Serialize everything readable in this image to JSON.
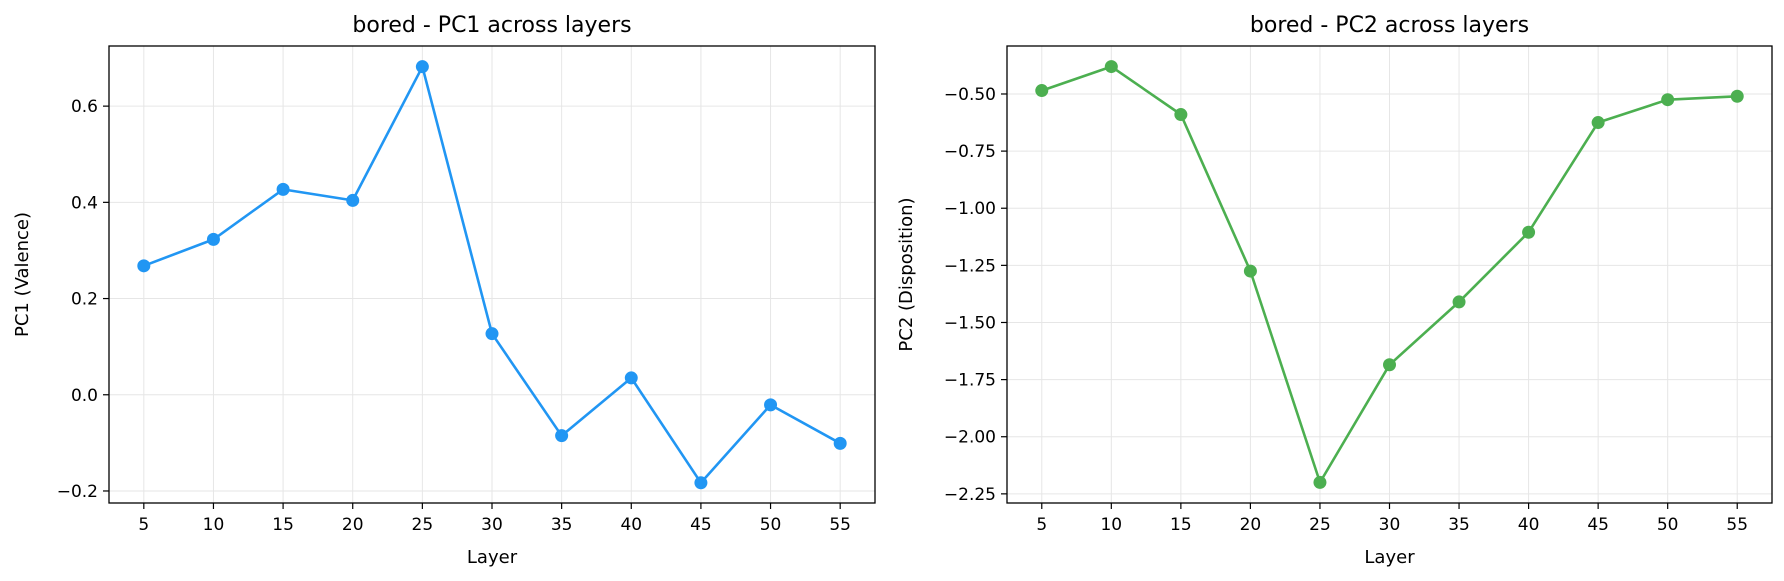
{
  "chart_data": [
    {
      "type": "line",
      "title": "bored - PC1 across layers",
      "xlabel": "Layer",
      "ylabel": "PC1 (Valence)",
      "x": [
        5,
        10,
        15,
        20,
        25,
        30,
        35,
        40,
        45,
        50,
        55
      ],
      "xticks": [
        "5",
        "10",
        "15",
        "20",
        "25",
        "30",
        "35",
        "40",
        "45",
        "50",
        "55"
      ],
      "xlim": [
        2.5,
        57.5
      ],
      "ylim": [
        -0.225,
        0.725
      ],
      "yticks": [
        {
          "value": -0.2,
          "label": "−0.2"
        },
        {
          "value": 0.0,
          "label": "0.0"
        },
        {
          "value": 0.2,
          "label": "0.2"
        },
        {
          "value": 0.4,
          "label": "0.4"
        },
        {
          "value": 0.6,
          "label": "0.6"
        }
      ],
      "grid": true,
      "series": [
        {
          "color": "#2196F3",
          "marker": "circle",
          "values": [
            0.268,
            0.323,
            0.427,
            0.404,
            0.682,
            0.127,
            -0.085,
            0.035,
            -0.183,
            -0.021,
            -0.101
          ]
        }
      ]
    },
    {
      "type": "line",
      "title": "bored - PC2 across layers",
      "xlabel": "Layer",
      "ylabel": "PC2 (Disposition)",
      "x": [
        5,
        10,
        15,
        20,
        25,
        30,
        35,
        40,
        45,
        50,
        55
      ],
      "xticks": [
        "5",
        "10",
        "15",
        "20",
        "25",
        "30",
        "35",
        "40",
        "45",
        "50",
        "55"
      ],
      "xlim": [
        2.5,
        57.5
      ],
      "ylim": [
        -2.29,
        -0.29
      ],
      "yticks": [
        {
          "value": -2.25,
          "label": "−2.25"
        },
        {
          "value": -2.0,
          "label": "−2.00"
        },
        {
          "value": -1.75,
          "label": "−1.75"
        },
        {
          "value": -1.5,
          "label": "−1.50"
        },
        {
          "value": -1.25,
          "label": "−1.25"
        },
        {
          "value": -1.0,
          "label": "−1.00"
        },
        {
          "value": -0.75,
          "label": "−0.75"
        },
        {
          "value": -0.5,
          "label": "−0.50"
        }
      ],
      "grid": true,
      "series": [
        {
          "color": "#4CAF50",
          "marker": "circle",
          "values": [
            -0.485,
            -0.38,
            -0.59,
            -1.275,
            -2.2,
            -1.685,
            -1.41,
            -1.105,
            -0.625,
            -0.525,
            -0.51
          ]
        }
      ]
    }
  ]
}
